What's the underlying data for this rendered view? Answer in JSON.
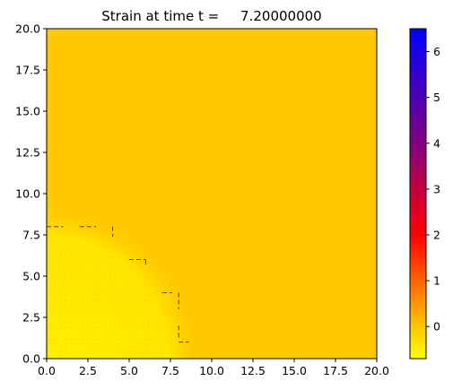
{
  "chart_data": {
    "type": "heatmap",
    "title": "Strain at time t =     7.20000000",
    "xlabel": "",
    "ylabel": "",
    "xlim": [
      0,
      20
    ],
    "ylim": [
      0,
      20
    ],
    "x_ticks": [
      "0.0",
      "2.5",
      "5.0",
      "7.5",
      "10.0",
      "12.5",
      "15.0",
      "17.5",
      "20.0"
    ],
    "y_ticks": [
      "0.0",
      "2.5",
      "5.0",
      "7.5",
      "10.0",
      "12.5",
      "15.0",
      "17.5",
      "20.0"
    ],
    "grid": false,
    "background_value": 0.0,
    "region": {
      "shape": "quarter-disk",
      "center": [
        0,
        0
      ],
      "radius": 9.0,
      "inner_value": -0.6,
      "rim_value": -0.15
    },
    "colorbar": {
      "min": -0.7,
      "max": 6.5,
      "ticks": [
        "0",
        "1",
        "2",
        "3",
        "4",
        "5",
        "6"
      ],
      "colormap": [
        "#ffff00",
        "#ffc800",
        "#ff0000",
        "#800080",
        "#0000ff"
      ],
      "position": "right"
    }
  }
}
